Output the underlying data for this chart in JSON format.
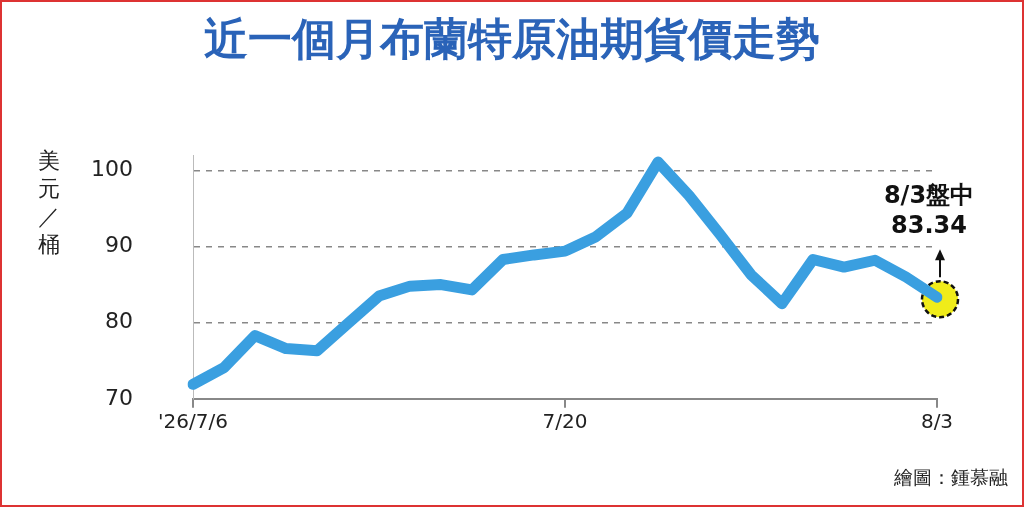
{
  "chart_data": {
    "type": "line",
    "title": "近一個月布蘭特原油期貨價走勢",
    "ylabel": "美元／桶",
    "categories": [
      "'26/7/6",
      null,
      null,
      null,
      null,
      null,
      null,
      null,
      null,
      null,
      null,
      null,
      "7/20",
      null,
      null,
      null,
      null,
      null,
      null,
      null,
      null,
      null,
      null,
      null,
      "8/3"
    ],
    "series": [
      {
        "color": "#3a9fe0",
        "values": [
          71.9,
          74.1,
          78.3,
          76.6,
          76.3,
          79.9,
          83.5,
          84.8,
          85.0,
          84.3,
          88.3,
          88.9,
          89.4,
          91.3,
          94.4,
          101.1,
          96.7,
          91.6,
          86.3,
          82.5,
          88.3,
          87.3,
          88.2,
          86.0,
          83.34
        ]
      }
    ],
    "ylim": [
      70,
      102
    ],
    "yticks": [
      70,
      80,
      90,
      100
    ],
    "grid": "y",
    "legend": false,
    "marker": "none",
    "line_style": "solid",
    "annotations": [
      {
        "text": "8/3盤中\n83.34",
        "x": "8/3",
        "y": 83.34
      },
      "繪圖：鍾慕融"
    ]
  }
}
